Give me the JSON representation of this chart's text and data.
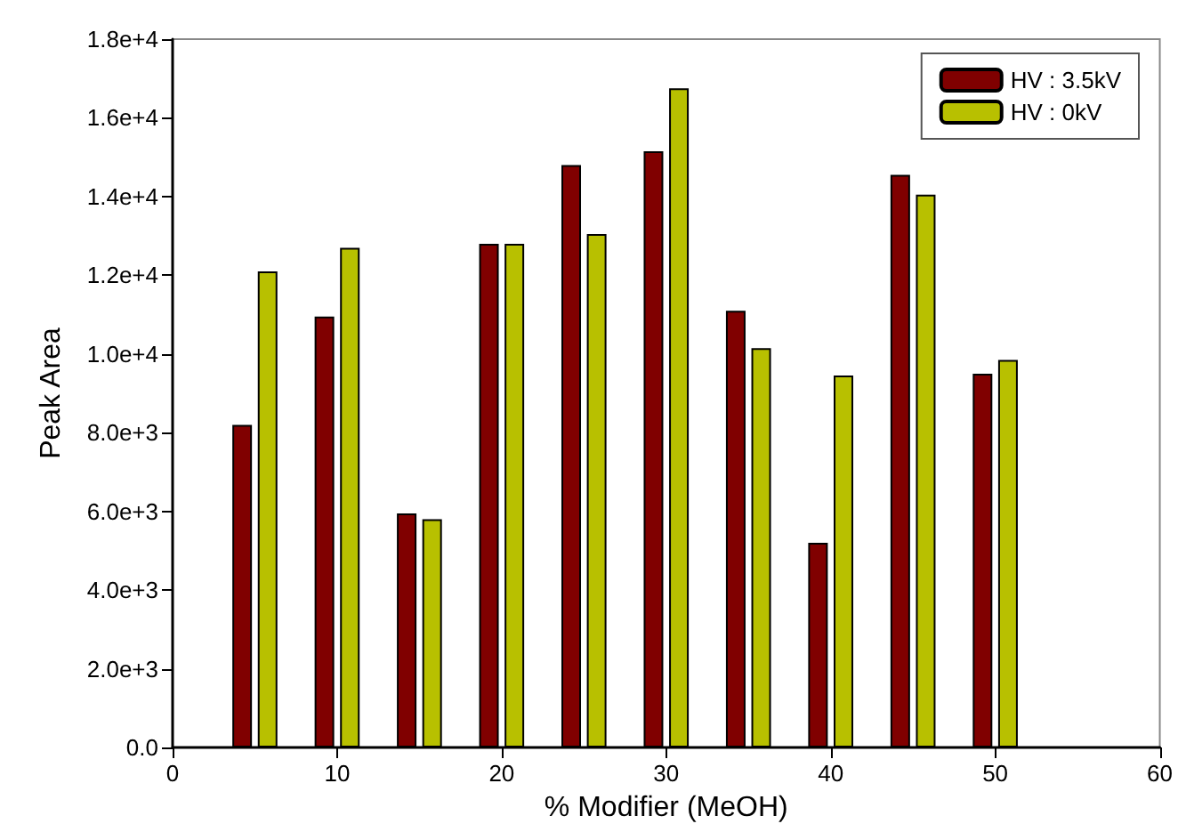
{
  "chart_data": {
    "type": "bar",
    "xlabel": "% Modifier (MeOH)",
    "ylabel": "Peak Area",
    "x": [
      5,
      10,
      15,
      20,
      25,
      30,
      35,
      40,
      45,
      50
    ],
    "series": [
      {
        "name": "HV : 3.5kV",
        "color": "#800000",
        "values": [
          8200,
          10950,
          5950,
          12800,
          14800,
          15150,
          11100,
          5200,
          14550,
          9500
        ]
      },
      {
        "name": "HV : 0kV",
        "color": "#b8c000",
        "values": [
          12100,
          12700,
          5800,
          12800,
          13050,
          16750,
          10150,
          9450,
          14050,
          9850
        ]
      }
    ],
    "xlim": [
      0,
      60
    ],
    "xticks": [
      0,
      10,
      20,
      30,
      40,
      50,
      60
    ],
    "ylim": [
      0,
      18000
    ],
    "yticks": [
      {
        "value": 0,
        "label": "0.0"
      },
      {
        "value": 2000,
        "label": "2.0e+3"
      },
      {
        "value": 4000,
        "label": "4.0e+3"
      },
      {
        "value": 6000,
        "label": "6.0e+3"
      },
      {
        "value": 8000,
        "label": "8.0e+3"
      },
      {
        "value": 10000,
        "label": "1.0e+4"
      },
      {
        "value": 12000,
        "label": "1.2e+4"
      },
      {
        "value": 14000,
        "label": "1.4e+4"
      },
      {
        "value": 16000,
        "label": "1.6e+4"
      },
      {
        "value": 18000,
        "label": "1.8e+4"
      }
    ],
    "grid": false,
    "legend": "top right"
  }
}
